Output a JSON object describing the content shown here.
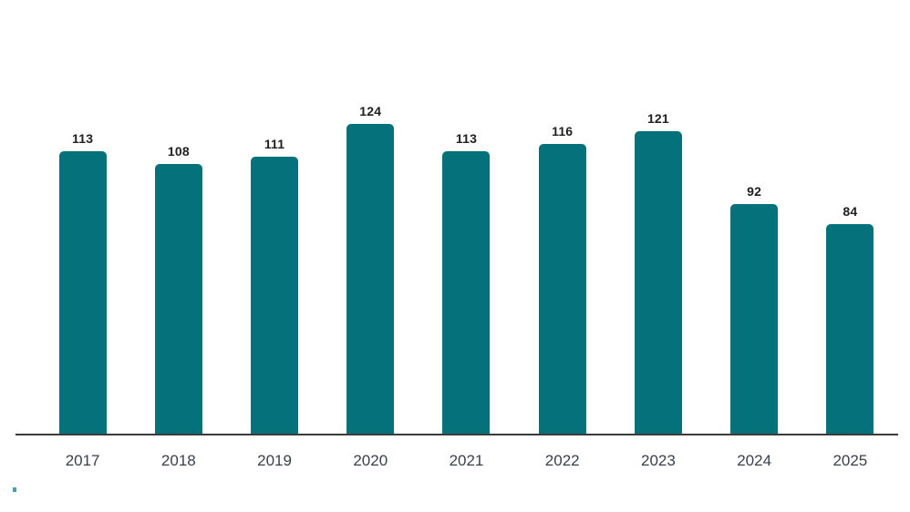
{
  "chart_data": {
    "type": "bar",
    "categories": [
      "2017",
      "2018",
      "2019",
      "2020",
      "2021",
      "2022",
      "2023",
      "2024",
      "2025"
    ],
    "values": [
      113,
      108,
      111,
      124,
      113,
      116,
      121,
      92,
      84
    ],
    "title": "",
    "xlabel": "",
    "ylabel": "",
    "ylim": [
      0,
      124
    ],
    "grid": false,
    "legend_position": "none",
    "y_axis_visible": false,
    "x_axis_line_visible": true,
    "data_labels_visible": true,
    "colors": {
      "bar": "#04717b",
      "axis_line": "#3b3b3b",
      "value_label": "#1f1f1f",
      "tick_label": "#39414d"
    }
  },
  "decorations": {
    "stray_mark_color": "#2a8fa0"
  }
}
